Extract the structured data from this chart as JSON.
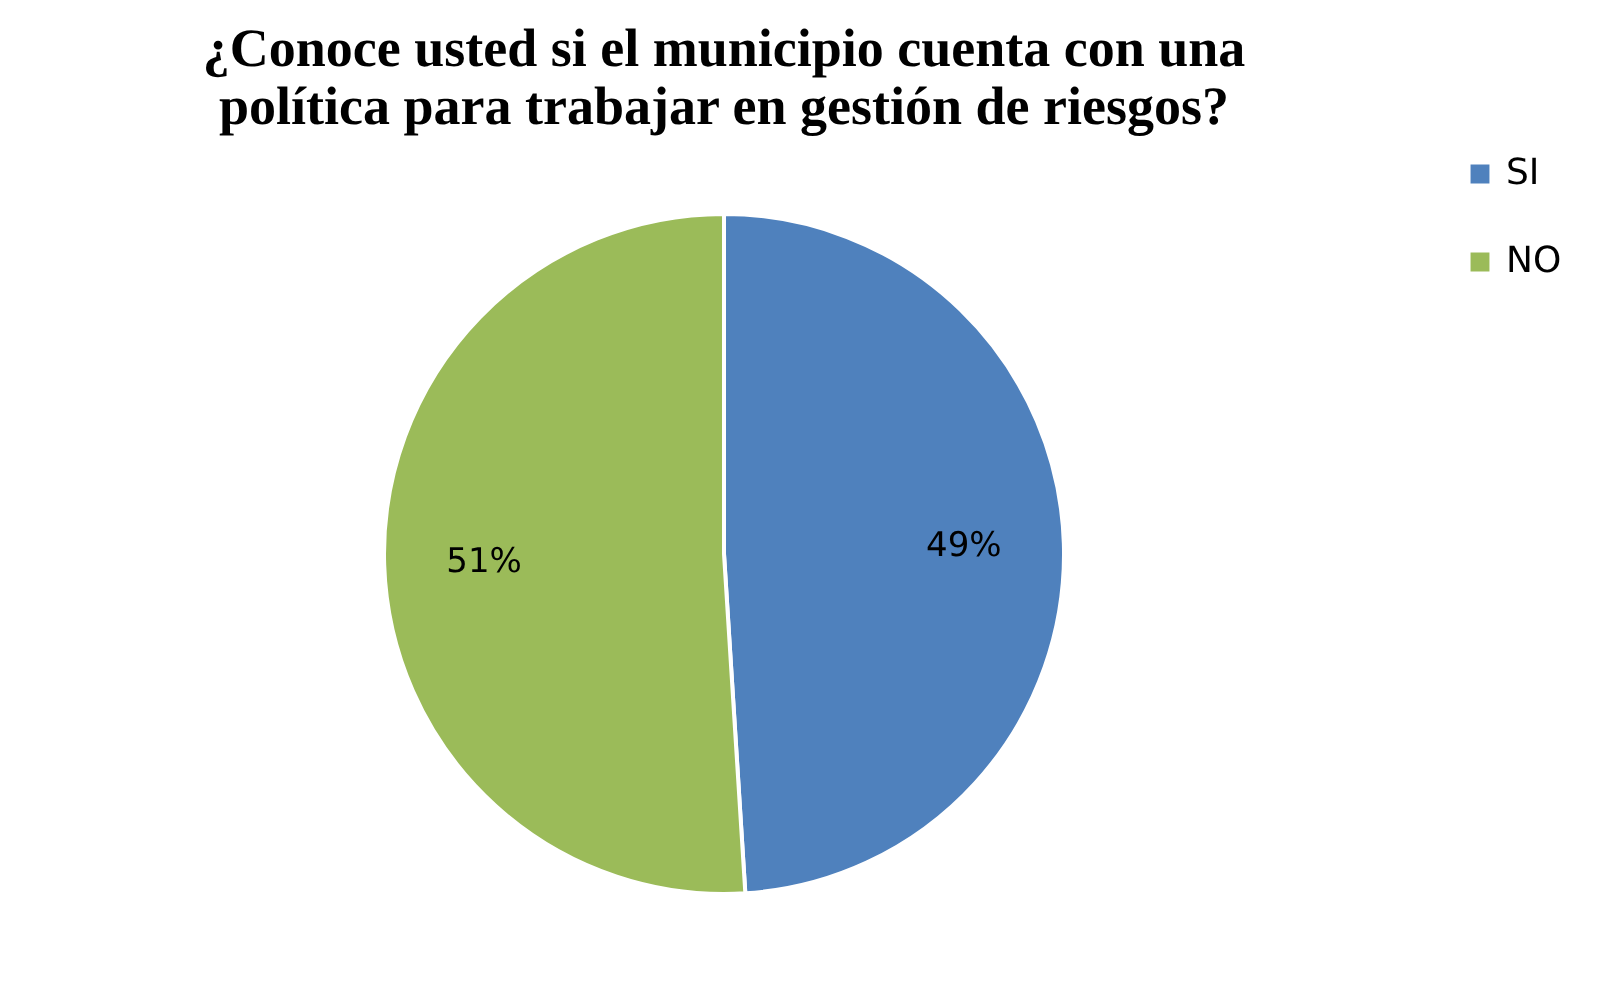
{
  "chart_data": {
    "type": "pie",
    "title": "¿Conoce usted si el municipio cuenta con una política para trabajar en gestión de riesgos?",
    "categories": [
      "SI",
      "NO"
    ],
    "values": [
      49,
      51
    ],
    "colors": [
      "#4f81bd",
      "#9bbb59"
    ],
    "value_labels": [
      "49%",
      "51%"
    ],
    "legend": "right"
  }
}
